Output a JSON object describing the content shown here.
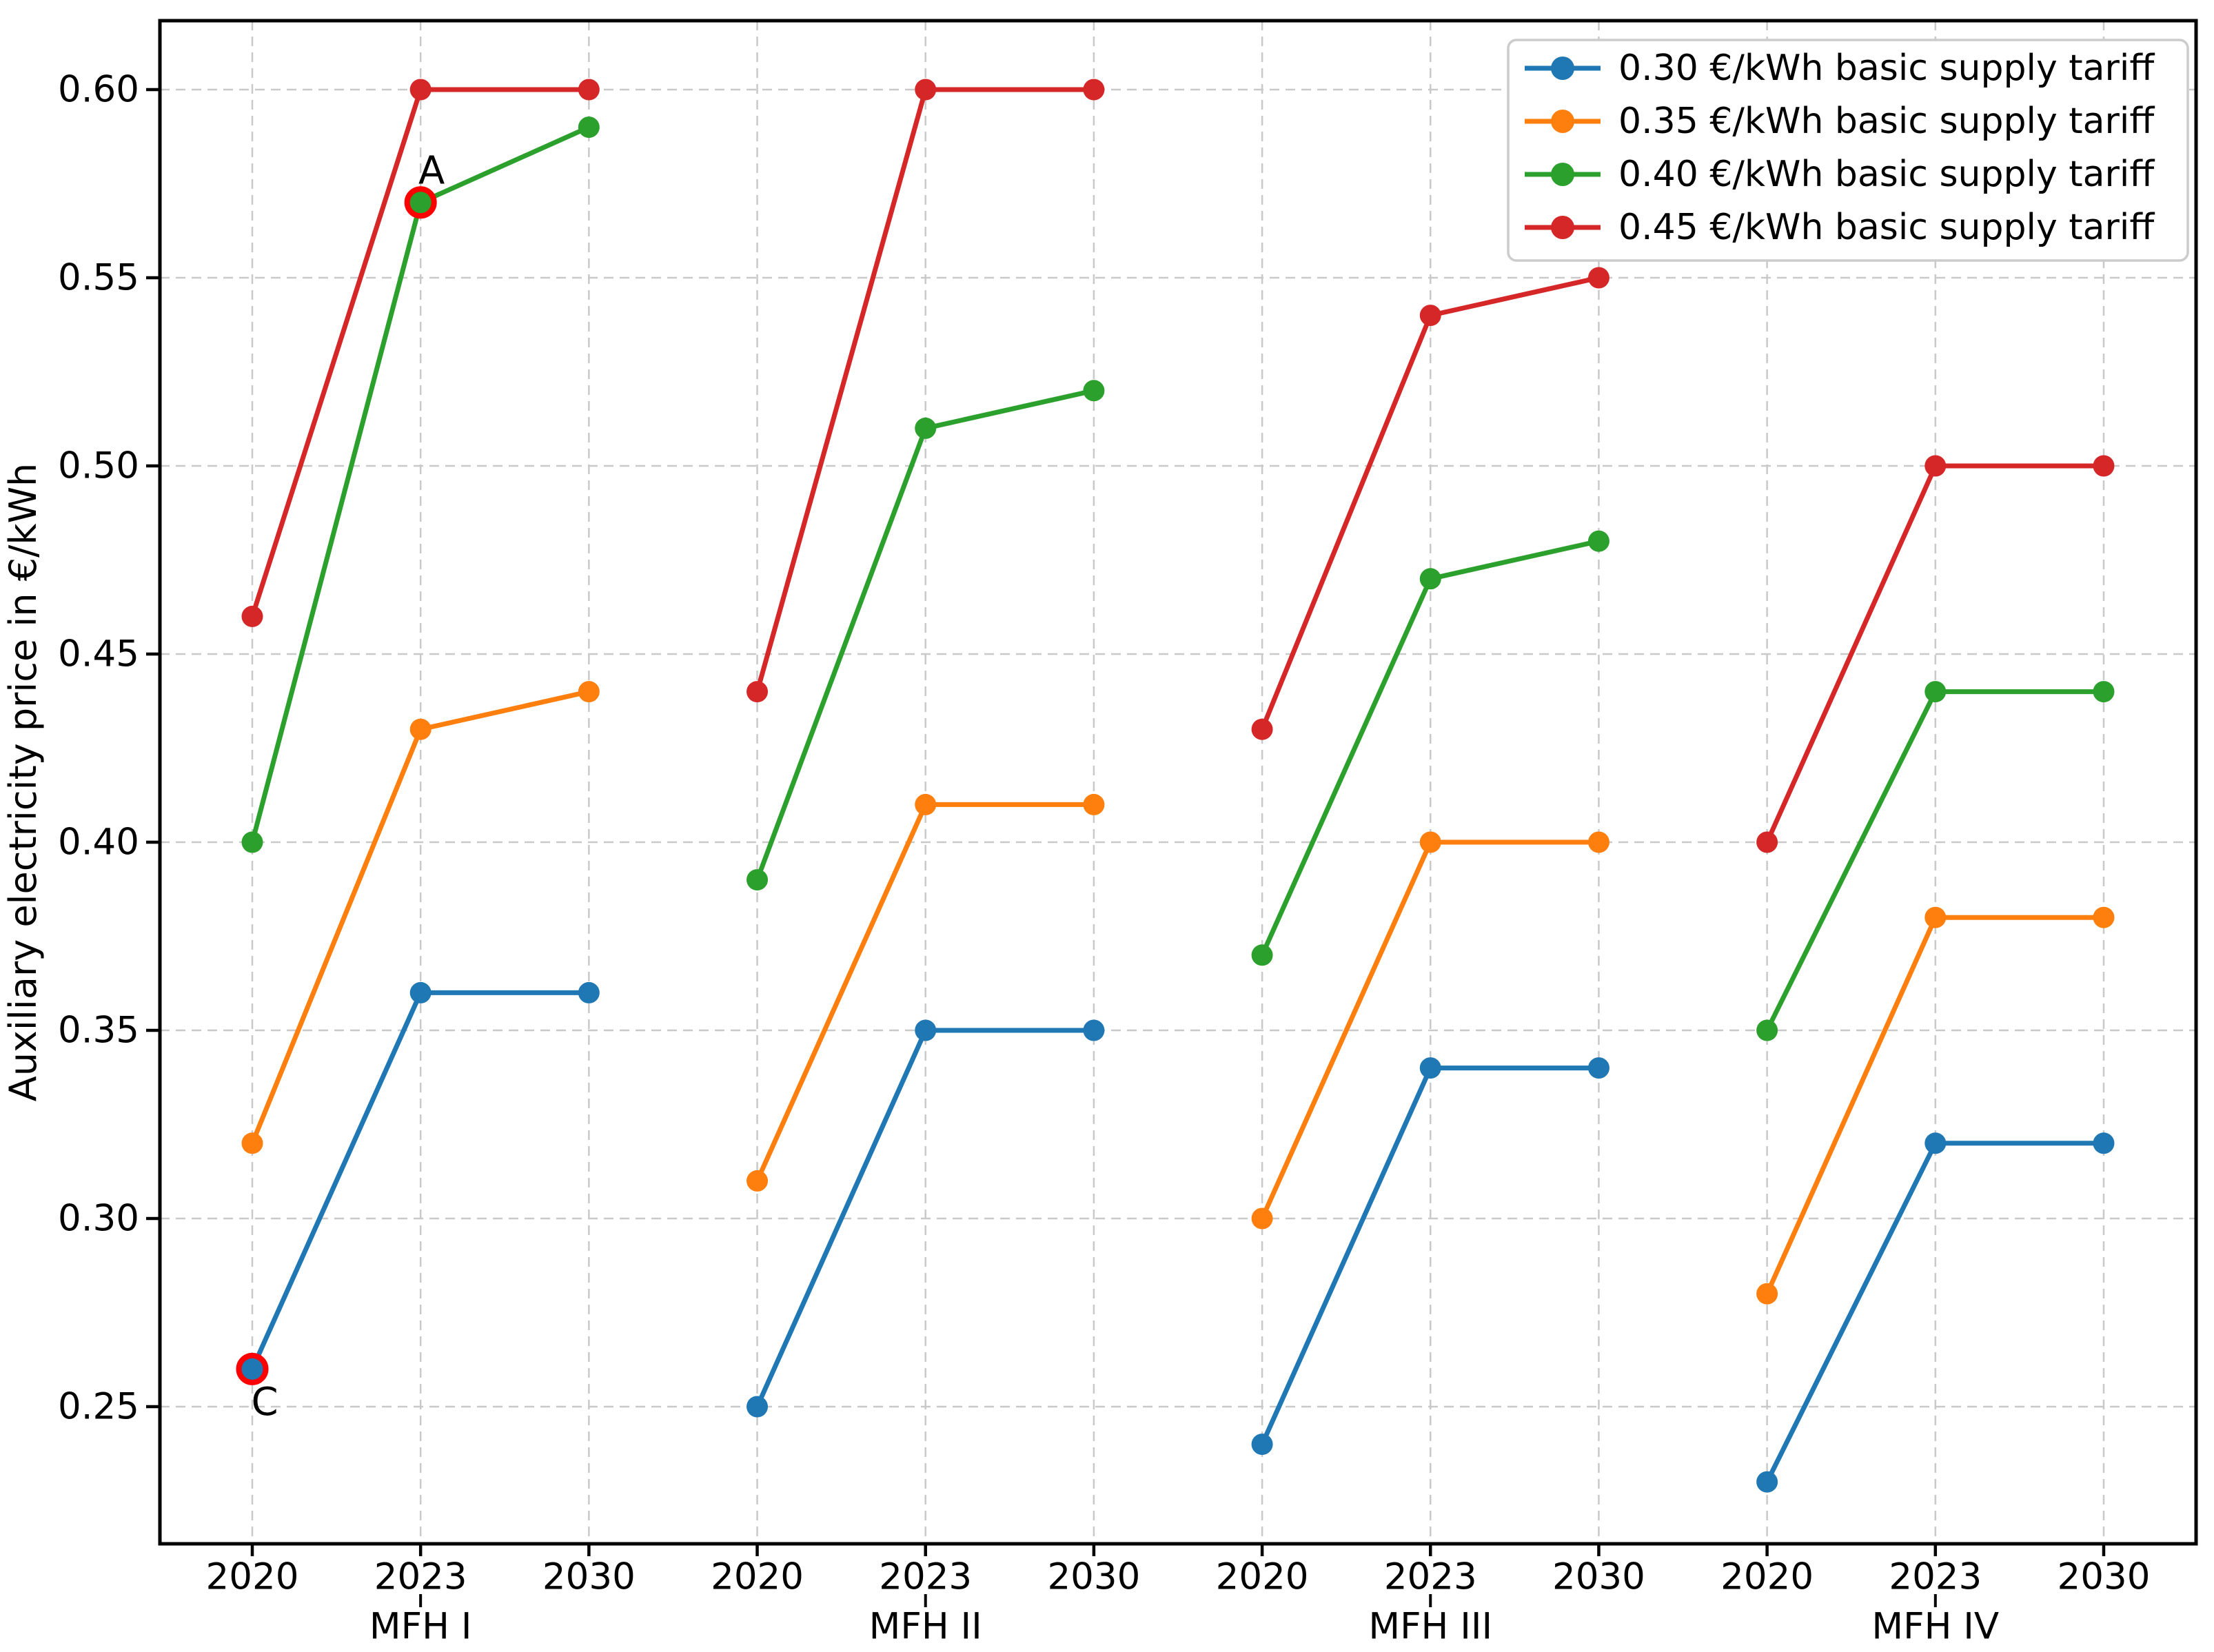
{
  "chart_data": {
    "type": "line",
    "title": "",
    "xlabel": "",
    "ylabel": "Auxiliary electricity price in €/kWh",
    "groups": [
      "MFH I",
      "MFH II",
      "MFH III",
      "MFH IV"
    ],
    "years": [
      "2020",
      "2023",
      "2030"
    ],
    "y_ticks": [
      0.25,
      0.3,
      0.35,
      0.4,
      0.45,
      0.5,
      0.55,
      0.6
    ],
    "ylim": [
      0.2136,
      0.6183
    ],
    "grid": true,
    "grid_style": "dashed",
    "legend_position": "upper right",
    "series": [
      {
        "name": "0.30 €/kWh basic supply tariff",
        "color": "#1f77b4",
        "values": [
          [
            0.26,
            0.36,
            0.36
          ],
          [
            0.25,
            0.35,
            0.35
          ],
          [
            0.24,
            0.34,
            0.34
          ],
          [
            0.23,
            0.32,
            0.32
          ]
        ]
      },
      {
        "name": "0.35 €/kWh basic supply tariff",
        "color": "#ff7f0e",
        "values": [
          [
            0.32,
            0.43,
            0.44
          ],
          [
            0.31,
            0.41,
            0.41
          ],
          [
            0.3,
            0.4,
            0.4
          ],
          [
            0.28,
            0.38,
            0.38
          ]
        ]
      },
      {
        "name": "0.40 €/kWh basic supply tariff",
        "color": "#2ca02c",
        "values": [
          [
            0.4,
            0.57,
            0.59
          ],
          [
            0.39,
            0.51,
            0.52
          ],
          [
            0.37,
            0.47,
            0.48
          ],
          [
            0.35,
            0.44,
            0.44
          ]
        ]
      },
      {
        "name": "0.45 €/kWh basic supply tariff",
        "color": "#d62728",
        "values": [
          [
            0.46,
            0.6,
            0.6
          ],
          [
            0.44,
            0.6,
            0.6
          ],
          [
            0.43,
            0.54,
            0.55
          ],
          [
            0.4,
            0.5,
            0.5
          ]
        ]
      }
    ],
    "annotations": [
      {
        "label": "A",
        "series_index": 2,
        "group_index": 0,
        "year_index": 1,
        "value": 0.57,
        "offset": [
          16,
          -46
        ]
      },
      {
        "label": "C",
        "series_index": 0,
        "group_index": 0,
        "year_index": 0,
        "value": 0.26,
        "offset": [
          18,
          48
        ]
      }
    ]
  },
  "colors": {
    "background": "#ffffff",
    "frame": "#000000",
    "grid": "#c9c9c9",
    "annotation": "#ff0000",
    "legend_border": "#cccccc",
    "legend_background": "#ffffff"
  }
}
